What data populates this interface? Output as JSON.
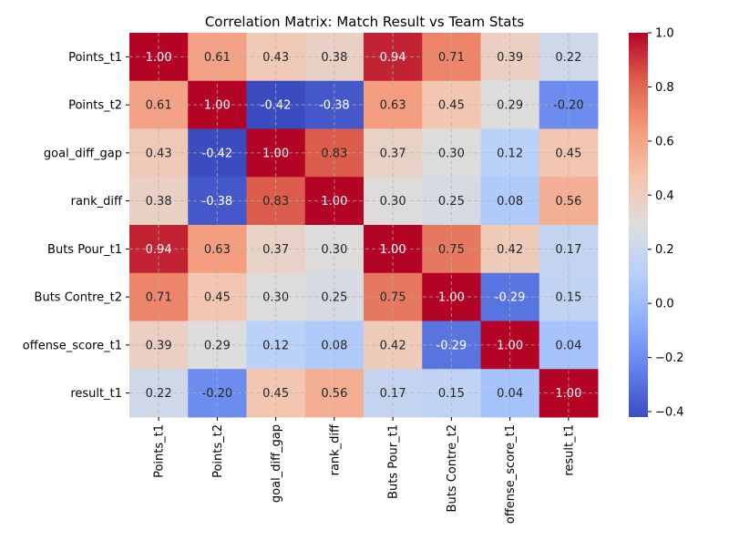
{
  "chart_data": {
    "type": "heatmap",
    "title": "Correlation Matrix: Match Result vs Team Stats",
    "rows": [
      "Points_t1",
      "Points_t2",
      "goal_diff_gap",
      "rank_diff",
      "Buts Pour_t1",
      "Buts Contre_t2",
      "offense_score_t1",
      "result_t1"
    ],
    "columns": [
      "Points_t1",
      "Points_t2",
      "goal_diff_gap",
      "rank_diff",
      "Buts Pour_t1",
      "Buts Contre_t2",
      "offense_score_t1",
      "result_t1"
    ],
    "values": [
      [
        1.0,
        0.61,
        0.43,
        0.38,
        0.94,
        0.71,
        0.39,
        0.22
      ],
      [
        0.61,
        1.0,
        -0.42,
        -0.38,
        0.63,
        0.45,
        0.29,
        -0.2
      ],
      [
        0.43,
        -0.42,
        1.0,
        0.83,
        0.37,
        0.3,
        0.12,
        0.45
      ],
      [
        0.38,
        -0.38,
        0.83,
        1.0,
        0.3,
        0.25,
        0.08,
        0.56
      ],
      [
        0.94,
        0.63,
        0.37,
        0.3,
        1.0,
        0.75,
        0.42,
        0.17
      ],
      [
        0.71,
        0.45,
        0.3,
        0.25,
        0.75,
        1.0,
        -0.29,
        0.15
      ],
      [
        0.39,
        0.29,
        0.12,
        0.08,
        0.42,
        -0.29,
        1.0,
        0.04
      ],
      [
        0.22,
        -0.2,
        0.45,
        0.56,
        0.17,
        0.15,
        0.04,
        1.0
      ]
    ],
    "value_format": "2 decimals",
    "colormap": "coolwarm",
    "colorbar": {
      "vmin": -0.42,
      "vmax": 1.0,
      "ticks": [
        -0.4,
        -0.2,
        0.0,
        0.2,
        0.4,
        0.6,
        0.8,
        1.0
      ],
      "tick_labels": [
        "−0.4",
        "−0.2",
        "0.0",
        "0.2",
        "0.4",
        "0.6",
        "0.8",
        "1.0"
      ]
    },
    "grid": true,
    "legend": "colorbar-right",
    "xlabel": "",
    "ylabel": ""
  }
}
